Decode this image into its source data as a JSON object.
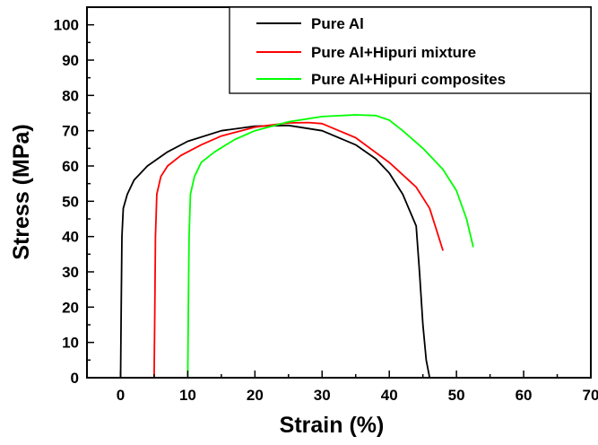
{
  "chart_data": {
    "type": "line",
    "xlabel": "Strain (%)",
    "ylabel": "Stress (MPa)",
    "xlim": [
      -5,
      70
    ],
    "ylim": [
      0,
      105
    ],
    "xticks": [
      0,
      10,
      20,
      30,
      40,
      50,
      60,
      70
    ],
    "yticks": [
      0,
      10,
      20,
      30,
      40,
      50,
      60,
      70,
      80,
      90,
      100
    ],
    "x_tick_labels": [
      "0",
      "10",
      "20",
      "30",
      "40",
      "50",
      "60",
      "70"
    ],
    "y_tick_labels": [
      "0",
      "10",
      "20",
      "30",
      "40",
      "50",
      "60",
      "70",
      "80",
      "90",
      "100"
    ],
    "grid": false,
    "legend_position": "top-right",
    "series": [
      {
        "name": "Pure Al",
        "color": "#000000",
        "x": [
          0,
          0.1,
          0.2,
          0.4,
          1,
          2,
          4,
          7,
          10,
          15,
          20,
          25,
          30,
          35,
          38,
          40,
          42,
          44,
          44.5,
          45,
          45.5,
          46
        ],
        "y": [
          0,
          20,
          40,
          48,
          52,
          56,
          60,
          64,
          67,
          70,
          71.3,
          71.5,
          70,
          66,
          62,
          58,
          52,
          43,
          30,
          15,
          5,
          0
        ]
      },
      {
        "name": "Pure Al+Hipuri mixture",
        "color": "#ff0000",
        "x": [
          5,
          5.1,
          5.2,
          5.4,
          6,
          7,
          9,
          12,
          15,
          20,
          25,
          28,
          30,
          35,
          40,
          44,
          46,
          47,
          48
        ],
        "y": [
          0,
          20,
          40,
          52,
          57,
          60,
          63,
          66,
          68.5,
          71,
          72.2,
          72.3,
          72,
          68,
          61,
          54,
          48,
          42,
          36
        ]
      },
      {
        "name": "Pure Al+Hipuri composites",
        "color": "#00ff00",
        "x": [
          10,
          10.1,
          10.2,
          10.4,
          11,
          12,
          14,
          17,
          20,
          25,
          30,
          35,
          38,
          40,
          42,
          45,
          48,
          50,
          51.5,
          52.5
        ],
        "y": [
          0,
          20,
          40,
          52,
          57,
          61,
          64,
          67.5,
          70,
          72.5,
          74,
          74.5,
          74.3,
          73,
          70,
          65,
          59,
          53,
          45,
          37
        ]
      }
    ]
  }
}
